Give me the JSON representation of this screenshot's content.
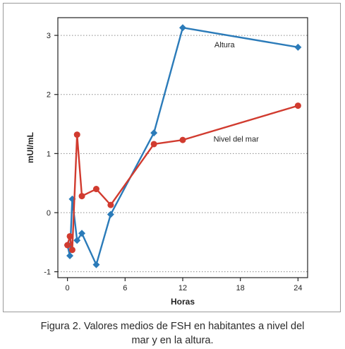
{
  "chart_data": {
    "type": "line",
    "xlabel": "Horas",
    "ylabel": "mUI/mL",
    "xlim": [
      -1,
      25
    ],
    "ylim": [
      -1.1,
      3.3
    ],
    "xticks": [
      0,
      6,
      12,
      18,
      24
    ],
    "yticks": [
      -1,
      0,
      1,
      2,
      3
    ],
    "xtick_labels": [
      "0",
      "6",
      "12",
      "18",
      "24"
    ],
    "ytick_labels": [
      "-1",
      "0",
      "1",
      "2",
      "3"
    ],
    "grid": "horizontal dotted lines at y ticks",
    "series": [
      {
        "name": "Altura",
        "color": "#2b7bb9",
        "marker": "diamond",
        "x": [
          0,
          0.25,
          0.5,
          1,
          1.5,
          3,
          4.5,
          9,
          12,
          24
        ],
        "y": [
          -0.55,
          -0.73,
          0.23,
          -0.47,
          -0.35,
          -0.88,
          -0.03,
          1.35,
          3.13,
          2.8
        ]
      },
      {
        "name": "Nivel del mar",
        "color": "#d13b2f",
        "marker": "circle",
        "x": [
          0,
          0.25,
          0.5,
          1,
          1.5,
          3,
          4.5,
          9,
          12,
          24
        ],
        "y": [
          -0.55,
          -0.4,
          -0.63,
          1.32,
          0.28,
          0.4,
          0.13,
          1.16,
          1.23,
          1.81
        ]
      }
    ]
  },
  "caption": {
    "line1": "Figura 2. Valores medios de FSH en habitantes a nivel del",
    "line2": "mar y en la altura."
  }
}
